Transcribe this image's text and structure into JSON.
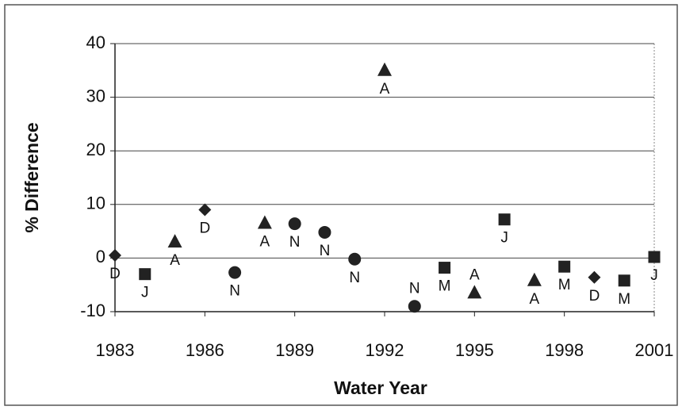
{
  "chart_data": {
    "type": "scatter",
    "x_label": "Water Year",
    "y_label": "% Difference",
    "x": [
      1983,
      1984,
      1985,
      1986,
      1987,
      1988,
      1989,
      1990,
      1991,
      1992,
      1993,
      1994,
      1995,
      1996,
      1997,
      1998,
      1999,
      2000,
      2001
    ],
    "series": [
      {
        "color": "#222222",
        "values": [
          0.5,
          -3,
          3,
          9,
          -2.7,
          6.5,
          6.4,
          4.8,
          -0.2,
          35,
          -9,
          -1.8,
          -6.5,
          7.2,
          -4.2,
          -1.6,
          -3.6,
          -4.2,
          0.2
        ],
        "labels": [
          "D",
          "J",
          "A",
          "D",
          "N",
          "A",
          "N",
          "N",
          "N",
          "A",
          "N",
          "M",
          "A",
          "J",
          "A",
          "M",
          "D",
          "M",
          "J"
        ],
        "markers": [
          "diamond",
          "square",
          "triangle",
          "diamond",
          "circle",
          "triangle",
          "circle",
          "circle",
          "circle",
          "triangle",
          "circle",
          "square",
          "triangle",
          "square",
          "triangle",
          "square",
          "diamond",
          "square",
          "square"
        ]
      }
    ],
    "xlim": [
      1983,
      2001
    ],
    "xticks": [
      1983,
      1986,
      1989,
      1992,
      1995,
      1998,
      2001
    ],
    "ylim": [
      -10,
      40
    ],
    "yticks": [
      -10,
      0,
      10,
      20,
      30,
      40
    ],
    "grid": true
  }
}
